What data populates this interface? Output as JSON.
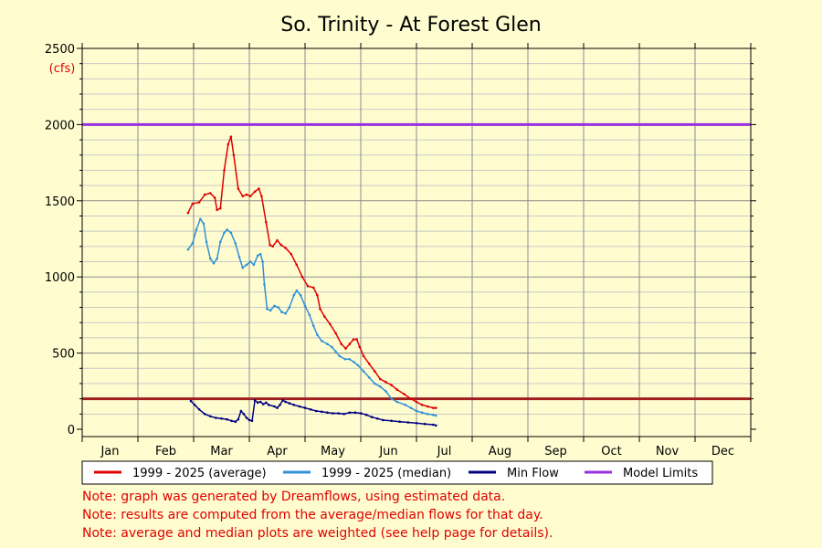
{
  "chart_data": {
    "type": "line",
    "title": "So. Trinity - At Forest Glen",
    "unit": "(cfs)",
    "ylim": [
      0,
      2500
    ],
    "y_ticks": [
      0,
      500,
      1000,
      1500,
      2000,
      2500
    ],
    "months": [
      "Jan",
      "Feb",
      "Mar",
      "Apr",
      "May",
      "Jun",
      "Jul",
      "Aug",
      "Sep",
      "Oct",
      "Nov",
      "Dec"
    ],
    "grid": true,
    "legend_position": "bottom",
    "series": [
      {
        "name": "1999 - 2025 (average)",
        "color": "#e00000",
        "points": [
          [
            2.9,
            1420
          ],
          [
            2.98,
            1480
          ],
          [
            3.1,
            1490
          ],
          [
            3.2,
            1540
          ],
          [
            3.3,
            1550
          ],
          [
            3.38,
            1520
          ],
          [
            3.42,
            1440
          ],
          [
            3.48,
            1450
          ],
          [
            3.55,
            1700
          ],
          [
            3.62,
            1870
          ],
          [
            3.67,
            1920
          ],
          [
            3.72,
            1800
          ],
          [
            3.8,
            1580
          ],
          [
            3.88,
            1530
          ],
          [
            3.95,
            1540
          ],
          [
            4.02,
            1530
          ],
          [
            4.1,
            1560
          ],
          [
            4.17,
            1580
          ],
          [
            4.22,
            1530
          ],
          [
            4.3,
            1360
          ],
          [
            4.37,
            1210
          ],
          [
            4.42,
            1200
          ],
          [
            4.5,
            1240
          ],
          [
            4.57,
            1210
          ],
          [
            4.65,
            1190
          ],
          [
            4.75,
            1150
          ],
          [
            4.85,
            1080
          ],
          [
            4.95,
            1000
          ],
          [
            5.05,
            940
          ],
          [
            5.15,
            930
          ],
          [
            5.22,
            880
          ],
          [
            5.27,
            790
          ],
          [
            5.35,
            740
          ],
          [
            5.45,
            690
          ],
          [
            5.55,
            630
          ],
          [
            5.65,
            560
          ],
          [
            5.73,
            530
          ],
          [
            5.8,
            560
          ],
          [
            5.87,
            590
          ],
          [
            5.93,
            590
          ],
          [
            5.98,
            540
          ],
          [
            6.05,
            480
          ],
          [
            6.15,
            430
          ],
          [
            6.25,
            380
          ],
          [
            6.35,
            330
          ],
          [
            6.45,
            310
          ],
          [
            6.55,
            290
          ],
          [
            6.65,
            260
          ],
          [
            6.78,
            230
          ],
          [
            6.9,
            200
          ],
          [
            7.0,
            180
          ],
          [
            7.1,
            160
          ],
          [
            7.2,
            150
          ],
          [
            7.3,
            140
          ],
          [
            7.35,
            140
          ]
        ]
      },
      {
        "name": "1999 - 2025 (median)",
        "color": "#3090d8",
        "points": [
          [
            2.9,
            1180
          ],
          [
            2.98,
            1220
          ],
          [
            3.05,
            1310
          ],
          [
            3.12,
            1380
          ],
          [
            3.18,
            1350
          ],
          [
            3.23,
            1230
          ],
          [
            3.3,
            1120
          ],
          [
            3.36,
            1090
          ],
          [
            3.42,
            1120
          ],
          [
            3.48,
            1230
          ],
          [
            3.55,
            1290
          ],
          [
            3.6,
            1310
          ],
          [
            3.67,
            1290
          ],
          [
            3.75,
            1220
          ],
          [
            3.82,
            1130
          ],
          [
            3.88,
            1060
          ],
          [
            3.95,
            1080
          ],
          [
            4.02,
            1100
          ],
          [
            4.08,
            1080
          ],
          [
            4.15,
            1140
          ],
          [
            4.2,
            1150
          ],
          [
            4.24,
            1100
          ],
          [
            4.27,
            950
          ],
          [
            4.32,
            790
          ],
          [
            4.38,
            780
          ],
          [
            4.45,
            810
          ],
          [
            4.52,
            800
          ],
          [
            4.58,
            770
          ],
          [
            4.65,
            760
          ],
          [
            4.72,
            800
          ],
          [
            4.8,
            880
          ],
          [
            4.85,
            910
          ],
          [
            4.92,
            880
          ],
          [
            5.0,
            810
          ],
          [
            5.08,
            750
          ],
          [
            5.15,
            680
          ],
          [
            5.22,
            620
          ],
          [
            5.3,
            580
          ],
          [
            5.4,
            560
          ],
          [
            5.48,
            540
          ],
          [
            5.55,
            510
          ],
          [
            5.62,
            480
          ],
          [
            5.72,
            460
          ],
          [
            5.8,
            460
          ],
          [
            5.88,
            440
          ],
          [
            5.95,
            420
          ],
          [
            6.05,
            380
          ],
          [
            6.15,
            340
          ],
          [
            6.25,
            300
          ],
          [
            6.35,
            280
          ],
          [
            6.45,
            250
          ],
          [
            6.55,
            200
          ],
          [
            6.65,
            180
          ],
          [
            6.8,
            160
          ],
          [
            6.9,
            140
          ],
          [
            7.0,
            120
          ],
          [
            7.1,
            110
          ],
          [
            7.2,
            100
          ],
          [
            7.3,
            95
          ],
          [
            7.35,
            90
          ]
        ]
      },
      {
        "name": "Min Flow",
        "color": "#000080",
        "points": [
          [
            2.95,
            185
          ],
          [
            3.02,
            160
          ],
          [
            3.1,
            130
          ],
          [
            3.2,
            100
          ],
          [
            3.3,
            85
          ],
          [
            3.4,
            75
          ],
          [
            3.5,
            70
          ],
          [
            3.6,
            65
          ],
          [
            3.68,
            55
          ],
          [
            3.75,
            50
          ],
          [
            3.8,
            65
          ],
          [
            3.85,
            120
          ],
          [
            3.9,
            100
          ],
          [
            3.95,
            75
          ],
          [
            4.0,
            60
          ],
          [
            4.05,
            55
          ],
          [
            4.1,
            190
          ],
          [
            4.15,
            175
          ],
          [
            4.2,
            180
          ],
          [
            4.25,
            165
          ],
          [
            4.3,
            175
          ],
          [
            4.35,
            160
          ],
          [
            4.45,
            150
          ],
          [
            4.5,
            140
          ],
          [
            4.55,
            160
          ],
          [
            4.6,
            190
          ],
          [
            4.65,
            180
          ],
          [
            4.72,
            170
          ],
          [
            4.8,
            160
          ],
          [
            4.9,
            150
          ],
          [
            5.0,
            140
          ],
          [
            5.1,
            130
          ],
          [
            5.2,
            120
          ],
          [
            5.3,
            115
          ],
          [
            5.4,
            110
          ],
          [
            5.5,
            105
          ],
          [
            5.6,
            105
          ],
          [
            5.7,
            100
          ],
          [
            5.8,
            110
          ],
          [
            5.9,
            110
          ],
          [
            6.0,
            105
          ],
          [
            6.1,
            95
          ],
          [
            6.2,
            80
          ],
          [
            6.3,
            70
          ],
          [
            6.4,
            60
          ],
          [
            6.55,
            55
          ],
          [
            6.7,
            50
          ],
          [
            6.85,
            45
          ],
          [
            7.0,
            40
          ],
          [
            7.15,
            35
          ],
          [
            7.3,
            30
          ],
          [
            7.35,
            25
          ]
        ]
      }
    ],
    "reference_lines": [
      {
        "name": "Model Limits",
        "value": 2000,
        "color": "#9a2fdf"
      },
      {
        "name": "Model Limits",
        "value": 200,
        "color": "#a02020"
      }
    ],
    "legend": [
      {
        "label": "1999 - 2025 (average)",
        "color": "#e00000"
      },
      {
        "label": "1999 - 2025 (median)",
        "color": "#3090d8"
      },
      {
        "label": "Min Flow",
        "color": "#000080"
      },
      {
        "label": "Model Limits",
        "color": "#9a2fdf"
      }
    ]
  },
  "notes": [
    "Note: graph was generated by Dreamflows, using estimated data.",
    "Note: results are computed from the average/median flows for that day.",
    "Note: average and median plots are weighted (see help page for details)."
  ],
  "colors": {
    "background": "#fffdd0",
    "unit": "#e00000",
    "notes": "#e00000",
    "grid": "#808080"
  }
}
